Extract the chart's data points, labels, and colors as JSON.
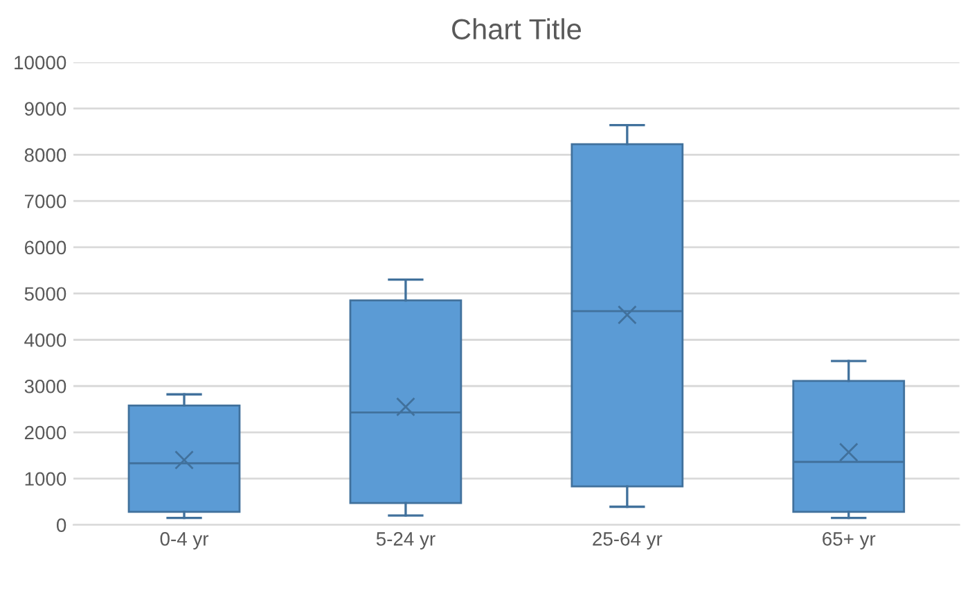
{
  "chart_data": {
    "type": "box",
    "title": "Chart Title",
    "categories": [
      "0-4 yr",
      "5-24 yr",
      "25-64 yr",
      "65+ yr"
    ],
    "boxes": [
      {
        "low": 150,
        "q1": 280,
        "median": 1330,
        "q3": 2580,
        "high": 2820,
        "mean": 1400
      },
      {
        "low": 200,
        "q1": 470,
        "median": 2430,
        "q3": 4850,
        "high": 5300,
        "mean": 2550
      },
      {
        "low": 390,
        "q1": 830,
        "median": 4620,
        "q3": 8230,
        "high": 8640,
        "mean": 4540
      },
      {
        "low": 150,
        "q1": 280,
        "median": 1360,
        "q3": 3110,
        "high": 3540,
        "mean": 1570
      }
    ],
    "color": "#5b9bd5",
    "ylim": [
      0,
      10000
    ],
    "yticks": [
      0,
      1000,
      2000,
      3000,
      4000,
      5000,
      6000,
      7000,
      8000,
      9000,
      10000
    ],
    "grid": "y",
    "legend": false
  }
}
